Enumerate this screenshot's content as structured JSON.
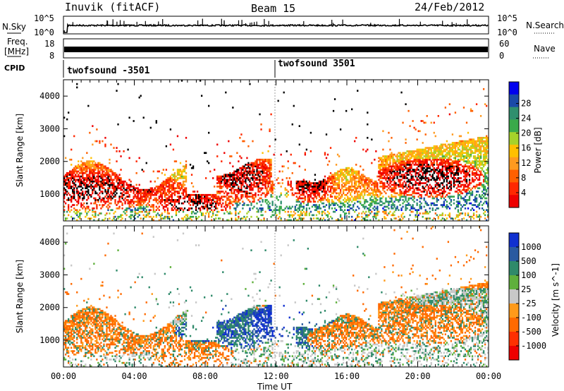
{
  "header": {
    "radar": "Inuvik (fitACF)",
    "beam": "Beam 15",
    "date": "24/Feb/2012"
  },
  "chart_data": [
    {
      "type": "line",
      "title": "N.Sky / N.Search",
      "left_label": "N.Sky",
      "right_label": "N.Search",
      "left_ticks": [
        "10^5",
        "10^0"
      ],
      "right_ticks": [
        "10^5",
        "10^0"
      ],
      "x_range": [
        "00:00",
        "24:00"
      ],
      "series": [
        {
          "name": "N.Sky",
          "style": "solid",
          "color": "#000000"
        },
        {
          "name": "N.Search",
          "style": "dotted",
          "color": "#000000"
        }
      ]
    },
    {
      "type": "line",
      "left_label_1": "Freq.",
      "left_label_2": "[MHz]",
      "right_label": "Nave",
      "left_ticks": [
        "18",
        "8"
      ],
      "right_ticks": [
        "60",
        "0"
      ],
      "x_range": [
        "00:00",
        "24:00"
      ]
    },
    {
      "type": "table",
      "label": "CPID",
      "entries": [
        {
          "start": "00:00",
          "end": "11:50",
          "name": "twofsound -3501"
        },
        {
          "start": "11:50",
          "end": "24:00",
          "name": "twofsound 3501"
        }
      ]
    },
    {
      "type": "heatmap",
      "ylabel": "Slant Range [km]",
      "yticks": [
        "1000",
        "2000",
        "3000",
        "4000"
      ],
      "ylim": [
        180,
        4500
      ],
      "xlim": [
        "00:00",
        "24:00"
      ],
      "colorbar_label": "Power [dB]",
      "colorbar_ticks": [
        "4",
        "8",
        "12",
        "16",
        "20",
        "24",
        "28"
      ],
      "colorbar_colors": [
        "#0000ee",
        "#1a4aa8",
        "#2f8f6e",
        "#3aaa4a",
        "#a6d22a",
        "#ffc000",
        "#ff9a20",
        "#ff6000",
        "#ff2800",
        "#ee0000"
      ]
    },
    {
      "type": "heatmap",
      "ylabel": "Slant Range [km]",
      "yticks": [
        "1000",
        "2000",
        "3000",
        "4000"
      ],
      "ylim": [
        180,
        4500
      ],
      "xlim": [
        "00:00",
        "24:00"
      ],
      "xlabel": "Time UT",
      "xticks": [
        "00:00",
        "04:00",
        "08:00",
        "12:00",
        "16:00",
        "20:00",
        "00:00"
      ],
      "colorbar_label": "Velocity [m s^-1]",
      "colorbar_ticks": [
        "1000",
        "500",
        "100",
        "25",
        "-25",
        "-100",
        "-500",
        "-1000"
      ],
      "colorbar_colors": [
        "#1030d0",
        "#2a5aa0",
        "#2f8a6a",
        "#5fb03c",
        "#c8c8c8",
        "#ff9a1a",
        "#ff6a00",
        "#ff3000",
        "#ee0000"
      ]
    }
  ]
}
